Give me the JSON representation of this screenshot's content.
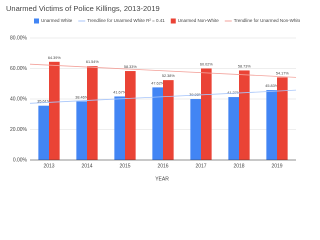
{
  "chart_data": {
    "type": "bar",
    "title": "Unarmed Victims of Police Killings, 2013-2019",
    "x_label": "YEAR",
    "categories": [
      "2013",
      "2014",
      "2015",
      "2016",
      "2017",
      "2018",
      "2019"
    ],
    "series": [
      {
        "name": "Unarmed White",
        "color": "#4285f4",
        "values": [
          35.61,
          38.46,
          41.67,
          47.62,
          39.98,
          41.27,
          45.83
        ],
        "value_labels": [
          "35.61%",
          "38.46%",
          "41.67%",
          "47.62%",
          "39.98%",
          "41.27%",
          "45.83%"
        ],
        "trendline": {
          "name": "Trendline for Unarmed White R² = 0.41",
          "color": "#a8c6fa"
        }
      },
      {
        "name": "Unarmed Non-White",
        "color": "#ea4335",
        "values": [
          64.39,
          61.54,
          58.33,
          52.38,
          60.02,
          58.73,
          54.17
        ],
        "value_labels": [
          "64.39%",
          "61.54%",
          "58.33%",
          "52.38%",
          "60.02%",
          "58.73%",
          "54.17%"
        ],
        "trendline": {
          "name": "Trendline for Unarmed Non-White R² = 0.41",
          "color": "#f3a29b"
        }
      }
    ],
    "ylim": [
      0,
      80
    ],
    "yticks": [
      {
        "value": 0,
        "label": "0.00%"
      },
      {
        "value": 20,
        "label": "20.00%"
      },
      {
        "value": 40,
        "label": "40.00%"
      },
      {
        "value": 60,
        "label": "60.00%"
      },
      {
        "value": 80,
        "label": "80.00%"
      }
    ],
    "grid": true
  }
}
